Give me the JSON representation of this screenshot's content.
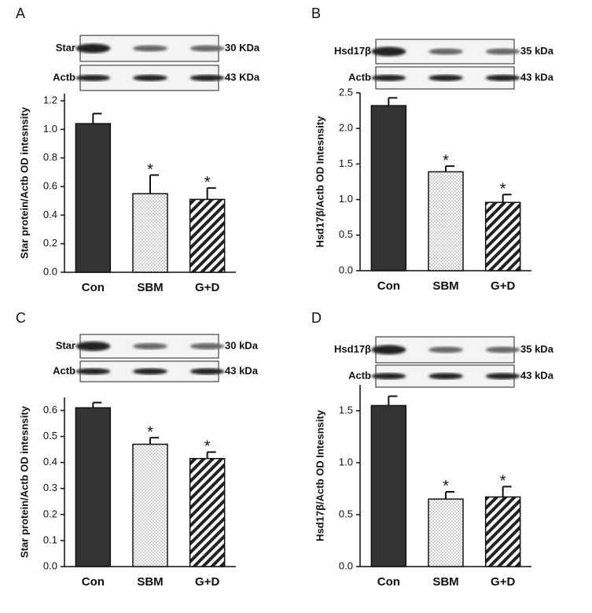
{
  "chart_data": [
    {
      "type": "bar",
      "panel": "A",
      "blot_labels": [
        "Star",
        "Actb"
      ],
      "blot_sizes": [
        "30 KDa",
        "43 KDa"
      ],
      "y_label": "Star protein/Actb OD intesnsity",
      "categories": [
        "Con",
        "SBM",
        "G+D"
      ],
      "values": [
        1.04,
        0.55,
        0.51
      ],
      "errors": [
        0.07,
        0.13,
        0.08
      ],
      "markers": [
        null,
        "*",
        "*"
      ],
      "patterns": [
        "solid",
        "dots",
        "stripes"
      ],
      "color": "#333333",
      "ylim": [
        0,
        1.25
      ],
      "yticks": [
        {
          "value": 0,
          "label": "0.0"
        },
        0.2,
        0.4,
        0.6,
        0.8,
        {
          "value": 1,
          "label": "1.0"
        },
        1.2
      ]
    },
    {
      "type": "bar",
      "panel": "B",
      "blot_labels": [
        "Hsd17β",
        "Actb"
      ],
      "blot_sizes": [
        "35 kDa",
        "43 kDa"
      ],
      "y_label": "Hsd17β/Actb OD Intesnsity",
      "categories": [
        "Con",
        "SBM",
        "G+D"
      ],
      "values": [
        2.32,
        1.39,
        0.96
      ],
      "errors": [
        0.11,
        0.08,
        0.11
      ],
      "markers": [
        null,
        "*",
        "*"
      ],
      "patterns": [
        "solid",
        "dots",
        "stripes"
      ],
      "color": "#333333",
      "ylim": [
        0,
        2.5
      ],
      "yticks": [
        {
          "value": 0,
          "label": "0.0"
        },
        0.5,
        {
          "value": 1,
          "label": "1.0"
        },
        1.5,
        {
          "value": 2,
          "label": "2.0"
        },
        2.5
      ]
    },
    {
      "type": "bar",
      "panel": "C",
      "blot_labels": [
        "Star",
        "Actb"
      ],
      "blot_sizes": [
        "30 kDa",
        "43 kDa"
      ],
      "y_label": "Star protein/Actb OD intesnsity",
      "categories": [
        "Con",
        "SBM",
        "G+D"
      ],
      "values": [
        0.61,
        0.47,
        0.415
      ],
      "errors": [
        0.02,
        0.025,
        0.025
      ],
      "markers": [
        null,
        "*",
        "*"
      ],
      "patterns": [
        "solid",
        "dots",
        "stripes"
      ],
      "color": "#333333",
      "ylim": [
        0,
        0.65
      ],
      "yticks": [
        {
          "value": 0,
          "label": "0.0"
        },
        0.1,
        0.2,
        0.3,
        0.4,
        0.5,
        0.6
      ]
    },
    {
      "type": "bar",
      "panel": "D",
      "blot_labels": [
        "Hsd17β",
        "Actb"
      ],
      "blot_sizes": [
        "35 kDa",
        "43 kDa"
      ],
      "y_label": "Hsd17β/Actb OD Intesnsity",
      "categories": [
        "Con",
        "SBM",
        "G+D"
      ],
      "values": [
        1.55,
        0.65,
        0.67
      ],
      "errors": [
        0.09,
        0.07,
        0.1
      ],
      "markers": [
        null,
        "*",
        "*"
      ],
      "patterns": [
        "solid",
        "dots",
        "stripes"
      ],
      "color": "#333333",
      "ylim": [
        0,
        1.75
      ],
      "yticks": [
        {
          "value": 0,
          "label": "0.0"
        },
        0.5,
        {
          "value": 1,
          "label": "1.0"
        },
        1.5
      ]
    }
  ]
}
